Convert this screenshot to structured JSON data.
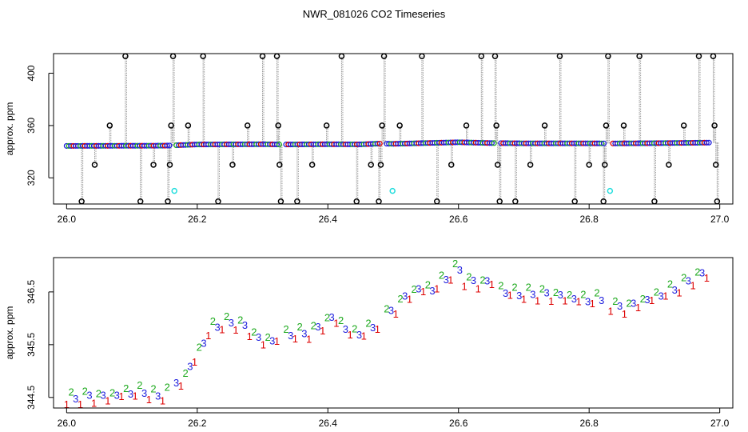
{
  "title": "NWR_081026  CO2 Timeseries",
  "colors": {
    "series1": "#dd0000",
    "series2": "#1faa1f",
    "series3": "#1f1fdd",
    "outlier": "#000000",
    "flagged": "#22dddd",
    "line": "#999999"
  },
  "chart_data": [
    {
      "type": "scatter",
      "panel": "top",
      "ylabel": "approx. ppm",
      "xlim": [
        25.98,
        27.02
      ],
      "ylim": [
        300,
        415
      ],
      "xticks": [
        26.0,
        26.2,
        26.4,
        26.6,
        26.8,
        27.0
      ],
      "xtick_labels": [
        "26.0",
        "26.2",
        "26.4",
        "26.6",
        "26.8",
        "27.0"
      ],
      "yticks": [
        320,
        360,
        400
      ],
      "ytick_labels": [
        "320",
        "360",
        "400"
      ],
      "baseline": [
        [
          26.0,
          344.4
        ],
        [
          26.15,
          344.6
        ],
        [
          26.2,
          345.5
        ],
        [
          26.3,
          345.7
        ],
        [
          26.33,
          345.5
        ],
        [
          26.4,
          345.7
        ],
        [
          26.45,
          345.6
        ],
        [
          26.48,
          346.2
        ],
        [
          26.5,
          346.0
        ],
        [
          26.55,
          346.6
        ],
        [
          26.6,
          347.2
        ],
        [
          26.65,
          346.6
        ],
        [
          26.7,
          346.4
        ],
        [
          26.8,
          346.4
        ],
        [
          26.83,
          346.3
        ],
        [
          26.9,
          346.5
        ],
        [
          27.0,
          347.0
        ]
      ],
      "gaps": [
        26.163,
        26.33,
        26.485,
        26.66,
        26.829
      ],
      "outliers": [
        {
          "x": 26.023,
          "y": 302
        },
        {
          "x": 26.043,
          "y": 330
        },
        {
          "x": 26.066,
          "y": 360
        },
        {
          "x": 26.09,
          "y": 413
        },
        {
          "x": 26.113,
          "y": 302
        },
        {
          "x": 26.133,
          "y": 330
        },
        {
          "x": 26.155,
          "y": 302
        },
        {
          "x": 26.158,
          "y": 330
        },
        {
          "x": 26.16,
          "y": 360
        },
        {
          "x": 26.163,
          "y": 413
        },
        {
          "x": 26.186,
          "y": 360
        },
        {
          "x": 26.209,
          "y": 413
        },
        {
          "x": 26.232,
          "y": 302
        },
        {
          "x": 26.254,
          "y": 330
        },
        {
          "x": 26.277,
          "y": 360
        },
        {
          "x": 26.3,
          "y": 413
        },
        {
          "x": 26.322,
          "y": 413
        },
        {
          "x": 26.324,
          "y": 360
        },
        {
          "x": 26.326,
          "y": 330
        },
        {
          "x": 26.328,
          "y": 302
        },
        {
          "x": 26.353,
          "y": 302
        },
        {
          "x": 26.376,
          "y": 330
        },
        {
          "x": 26.398,
          "y": 360
        },
        {
          "x": 26.421,
          "y": 413
        },
        {
          "x": 26.444,
          "y": 302
        },
        {
          "x": 26.466,
          "y": 330
        },
        {
          "x": 26.478,
          "y": 302
        },
        {
          "x": 26.481,
          "y": 330
        },
        {
          "x": 26.483,
          "y": 360
        },
        {
          "x": 26.486,
          "y": 413
        },
        {
          "x": 26.51,
          "y": 360
        },
        {
          "x": 26.544,
          "y": 413
        },
        {
          "x": 26.567,
          "y": 302
        },
        {
          "x": 26.589,
          "y": 330
        },
        {
          "x": 26.612,
          "y": 360
        },
        {
          "x": 26.635,
          "y": 413
        },
        {
          "x": 26.656,
          "y": 413
        },
        {
          "x": 26.658,
          "y": 360
        },
        {
          "x": 26.66,
          "y": 330
        },
        {
          "x": 26.663,
          "y": 302
        },
        {
          "x": 26.687,
          "y": 302
        },
        {
          "x": 26.71,
          "y": 330
        },
        {
          "x": 26.732,
          "y": 360
        },
        {
          "x": 26.755,
          "y": 413
        },
        {
          "x": 26.778,
          "y": 302
        },
        {
          "x": 26.8,
          "y": 330
        },
        {
          "x": 26.822,
          "y": 302
        },
        {
          "x": 26.824,
          "y": 330
        },
        {
          "x": 26.826,
          "y": 360
        },
        {
          "x": 26.829,
          "y": 413
        },
        {
          "x": 26.853,
          "y": 360
        },
        {
          "x": 26.877,
          "y": 413
        },
        {
          "x": 26.9,
          "y": 302
        },
        {
          "x": 26.922,
          "y": 330
        },
        {
          "x": 26.945,
          "y": 360
        },
        {
          "x": 26.968,
          "y": 413
        },
        {
          "x": 26.99,
          "y": 413
        },
        {
          "x": 26.992,
          "y": 360
        },
        {
          "x": 26.994,
          "y": 330
        },
        {
          "x": 26.996,
          "y": 302
        }
      ],
      "flagged": [
        {
          "x": 26.165,
          "y": 310
        },
        {
          "x": 26.499,
          "y": 310
        },
        {
          "x": 26.832,
          "y": 310
        }
      ]
    },
    {
      "type": "scatter",
      "panel": "bottom",
      "ylabel": "approx. ppm",
      "xlim": [
        25.98,
        27.02
      ],
      "ylim": [
        344.3,
        347.15
      ],
      "xticks": [
        26.0,
        26.2,
        26.4,
        26.6,
        26.8,
        27.0
      ],
      "xtick_labels": [
        "26.0",
        "26.2",
        "26.4",
        "26.6",
        "26.8",
        "27.0"
      ],
      "yticks": [
        344.5,
        345.5,
        346.5
      ],
      "ytick_labels": [
        "344.5",
        "345.5",
        "346.5"
      ],
      "markers": [
        "1",
        "2",
        "3"
      ],
      "series_points": [
        [
          26.0,
          344.45
        ],
        [
          26.03,
          344.5
        ],
        [
          26.06,
          344.5
        ],
        [
          26.08,
          344.55
        ],
        [
          26.1,
          344.6
        ],
        [
          26.12,
          344.6
        ],
        [
          26.14,
          344.5
        ],
        [
          26.16,
          344.65
        ],
        [
          26.18,
          344.85
        ],
        [
          26.19,
          345.1
        ],
        [
          26.2,
          345.3
        ],
        [
          26.21,
          345.55
        ],
        [
          26.22,
          345.8
        ],
        [
          26.24,
          345.9
        ],
        [
          26.26,
          345.9
        ],
        [
          26.27,
          345.85
        ],
        [
          26.28,
          345.75
        ],
        [
          26.3,
          345.55
        ],
        [
          26.32,
          345.6
        ],
        [
          26.34,
          345.7
        ],
        [
          26.36,
          345.7
        ],
        [
          26.38,
          345.75
        ],
        [
          26.39,
          345.85
        ],
        [
          26.4,
          345.95
        ],
        [
          26.41,
          346.0
        ],
        [
          26.42,
          345.9
        ],
        [
          26.43,
          345.75
        ],
        [
          26.44,
          345.7
        ],
        [
          26.46,
          345.75
        ],
        [
          26.48,
          345.95
        ],
        [
          26.5,
          346.15
        ],
        [
          26.52,
          346.4
        ],
        [
          26.54,
          346.55
        ],
        [
          26.56,
          346.55
        ],
        [
          26.58,
          346.75
        ],
        [
          26.6,
          346.95
        ],
        [
          26.61,
          346.7
        ],
        [
          26.63,
          346.65
        ],
        [
          26.65,
          346.7
        ],
        [
          26.67,
          346.5
        ],
        [
          26.7,
          346.45
        ],
        [
          26.73,
          346.45
        ],
        [
          26.76,
          346.4
        ],
        [
          26.79,
          346.35
        ],
        [
          26.82,
          346.35
        ],
        [
          26.84,
          346.2
        ],
        [
          26.86,
          346.2
        ],
        [
          26.88,
          346.3
        ],
        [
          26.9,
          346.4
        ],
        [
          26.92,
          346.5
        ],
        [
          26.94,
          346.6
        ],
        [
          26.96,
          346.75
        ],
        [
          26.98,
          346.85
        ]
      ]
    }
  ]
}
